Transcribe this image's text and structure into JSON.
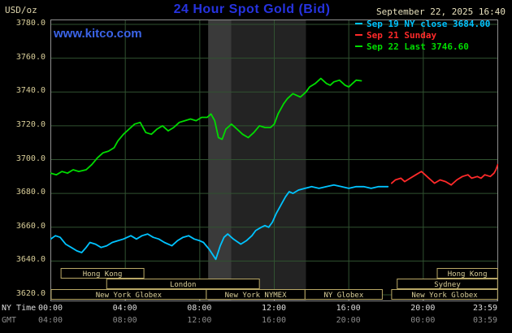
{
  "header": {
    "units": "USD/oz",
    "title": "24 Hour Spot Gold (Bid)",
    "datetime": "September 22, 2025 16:40",
    "watermark": "www.kitco.com",
    "legend": [
      {
        "label": "Sep 19 NY close 3684.00",
        "color": "#00c3ff"
      },
      {
        "label": "Sep 21 Sunday",
        "color": "#ff2a2a"
      },
      {
        "label": "Sep 22 Last 3746.60",
        "color": "#00dc00"
      }
    ]
  },
  "axes": {
    "ny_label": "NY Time",
    "gmt_label": "GMT",
    "ny_ticks": [
      "00:00",
      "04:00",
      "08:00",
      "12:00",
      "16:00",
      "20:00",
      "23:59"
    ],
    "gmt_ticks": [
      "04:00",
      "08:00",
      "12:00",
      "16:00",
      "20:00",
      "00:00",
      "03:59"
    ],
    "y_ticks": [
      "3780.0",
      "3760.0",
      "3740.0",
      "3720.0",
      "3700.0",
      "3680.0",
      "3660.0",
      "3640.0",
      "3620.0"
    ]
  },
  "colors": {
    "background": "#000000",
    "title_blue": "#2633e0",
    "kitco_blue": "#3b64e8",
    "axis_tan": "#d8cd98",
    "date_text": "#e8e1bd",
    "ny_tick_text": "#dcdcdc",
    "gmt_tick_text": "#8c8c8c",
    "grid": "#315231",
    "frame": "#8f8f8f",
    "session_border": "#b9a866",
    "session_text": "#d8cd98"
  },
  "chart_data": {
    "type": "line",
    "title": "24 Hour Spot Gold (Bid)",
    "xlabel": "NY Time",
    "ylabel": "USD/oz",
    "xlim": [
      0,
      24
    ],
    "ylim": [
      3620,
      3780
    ],
    "y_grid_step": 20,
    "x_grid_hours": [
      4,
      8,
      12,
      16,
      20
    ],
    "x_tick_hours": [
      0,
      4,
      8,
      12,
      16,
      20,
      23.98
    ],
    "grid_on": true,
    "legend_position": "top-right",
    "highlight_bands": [
      {
        "start": 8.45,
        "end": 9.7,
        "color": "#3a3a3a"
      },
      {
        "start": 9.7,
        "end": 13.7,
        "color": "#232323"
      }
    ],
    "series": [
      {
        "id": "sep19",
        "name": "Sep 19 NY close 3684.00",
        "color": "#00c3ff",
        "points": [
          [
            0,
            3653
          ],
          [
            0.25,
            3655
          ],
          [
            0.5,
            3654
          ],
          [
            0.8,
            3650
          ],
          [
            1.1,
            3648
          ],
          [
            1.4,
            3646
          ],
          [
            1.66,
            3645
          ],
          [
            1.9,
            3648
          ],
          [
            2.1,
            3651
          ],
          [
            2.4,
            3650
          ],
          [
            2.7,
            3648
          ],
          [
            3,
            3649
          ],
          [
            3.3,
            3651
          ],
          [
            3.6,
            3652
          ],
          [
            3.9,
            3653
          ],
          [
            4.3,
            3655
          ],
          [
            4.6,
            3653
          ],
          [
            4.9,
            3655
          ],
          [
            5.2,
            3656
          ],
          [
            5.5,
            3654
          ],
          [
            5.8,
            3653
          ],
          [
            6.1,
            3651
          ],
          [
            6.5,
            3649
          ],
          [
            6.8,
            3652
          ],
          [
            7.1,
            3654
          ],
          [
            7.4,
            3655
          ],
          [
            7.7,
            3653
          ],
          [
            8,
            3652
          ],
          [
            8.2,
            3651
          ],
          [
            8.5,
            3647
          ],
          [
            8.86,
            3641
          ],
          [
            9.1,
            3649
          ],
          [
            9.3,
            3654
          ],
          [
            9.5,
            3656
          ],
          [
            9.8,
            3653
          ],
          [
            10.2,
            3650
          ],
          [
            10.5,
            3652
          ],
          [
            10.8,
            3655
          ],
          [
            11,
            3658
          ],
          [
            11.3,
            3660
          ],
          [
            11.5,
            3661
          ],
          [
            11.7,
            3660
          ],
          [
            11.9,
            3663
          ],
          [
            12.1,
            3668
          ],
          [
            12.4,
            3674
          ],
          [
            12.6,
            3678
          ],
          [
            12.8,
            3681
          ],
          [
            13,
            3680
          ],
          [
            13.3,
            3682
          ],
          [
            13.65,
            3683
          ],
          [
            14,
            3684
          ],
          [
            14.4,
            3683
          ],
          [
            14.8,
            3684
          ],
          [
            15.2,
            3685
          ],
          [
            15.6,
            3684
          ],
          [
            16,
            3683
          ],
          [
            16.4,
            3684
          ],
          [
            16.8,
            3684
          ],
          [
            17.2,
            3683
          ],
          [
            17.6,
            3684
          ],
          [
            18.1,
            3684
          ]
        ]
      },
      {
        "id": "sep21",
        "name": "Sep 21 Sunday",
        "color": "#ff2a2a",
        "points": [
          [
            18.3,
            3686
          ],
          [
            18.5,
            3688
          ],
          [
            18.8,
            3689
          ],
          [
            19,
            3687
          ],
          [
            19.3,
            3689
          ],
          [
            19.6,
            3691
          ],
          [
            19.9,
            3693
          ],
          [
            20.1,
            3691
          ],
          [
            20.3,
            3689
          ],
          [
            20.6,
            3686
          ],
          [
            20.9,
            3688
          ],
          [
            21.2,
            3687
          ],
          [
            21.5,
            3685
          ],
          [
            21.8,
            3688
          ],
          [
            22.1,
            3690
          ],
          [
            22.4,
            3691
          ],
          [
            22.6,
            3689
          ],
          [
            22.9,
            3690
          ],
          [
            23.1,
            3689
          ],
          [
            23.3,
            3691
          ],
          [
            23.6,
            3690
          ],
          [
            23.8,
            3692
          ],
          [
            23.9,
            3694
          ],
          [
            24,
            3697
          ]
        ]
      },
      {
        "id": "sep22",
        "name": "Sep 22 Last 3746.60",
        "color": "#00dc00",
        "points": [
          [
            0,
            3692
          ],
          [
            0.3,
            3691
          ],
          [
            0.6,
            3693
          ],
          [
            0.9,
            3692
          ],
          [
            1.2,
            3694
          ],
          [
            1.5,
            3693
          ],
          [
            1.9,
            3694
          ],
          [
            2.2,
            3697
          ],
          [
            2.5,
            3701
          ],
          [
            2.8,
            3704
          ],
          [
            3.1,
            3705
          ],
          [
            3.4,
            3707
          ],
          [
            3.6,
            3711
          ],
          [
            3.9,
            3715
          ],
          [
            4.2,
            3718
          ],
          [
            4.5,
            3721
          ],
          [
            4.8,
            3722
          ],
          [
            5.1,
            3716
          ],
          [
            5.4,
            3715
          ],
          [
            5.7,
            3718
          ],
          [
            6,
            3720
          ],
          [
            6.3,
            3717
          ],
          [
            6.6,
            3719
          ],
          [
            6.9,
            3722
          ],
          [
            7.2,
            3723
          ],
          [
            7.5,
            3724
          ],
          [
            7.8,
            3723
          ],
          [
            8.1,
            3725
          ],
          [
            8.4,
            3725
          ],
          [
            8.6,
            3727
          ],
          [
            8.8,
            3723
          ],
          [
            9,
            3713
          ],
          [
            9.2,
            3712
          ],
          [
            9.4,
            3718
          ],
          [
            9.7,
            3721
          ],
          [
            10,
            3718
          ],
          [
            10.3,
            3715
          ],
          [
            10.6,
            3713
          ],
          [
            10.9,
            3716
          ],
          [
            11.2,
            3720
          ],
          [
            11.5,
            3719
          ],
          [
            11.8,
            3719
          ],
          [
            12,
            3721
          ],
          [
            12.2,
            3727
          ],
          [
            12.5,
            3733
          ],
          [
            12.7,
            3736
          ],
          [
            13,
            3739
          ],
          [
            13.2,
            3738
          ],
          [
            13.4,
            3737
          ],
          [
            13.7,
            3740
          ],
          [
            13.9,
            3743
          ],
          [
            14.2,
            3745
          ],
          [
            14.5,
            3748
          ],
          [
            14.8,
            3745
          ],
          [
            15,
            3744
          ],
          [
            15.2,
            3746
          ],
          [
            15.5,
            3747
          ],
          [
            15.8,
            3744
          ],
          [
            16,
            3743
          ],
          [
            16.2,
            3745
          ],
          [
            16.4,
            3747
          ],
          [
            16.67,
            3746.6
          ]
        ]
      }
    ],
    "sessions": [
      {
        "label": "Hong Kong",
        "row": 0,
        "start": 0.55,
        "end": 5.0
      },
      {
        "label": "Hong Kong",
        "row": 0,
        "start": 20.75,
        "end": 23.99
      },
      {
        "label": "London",
        "row": 1,
        "start": 3.0,
        "end": 11.2
      },
      {
        "label": "Sydney",
        "row": 1,
        "start": 18.6,
        "end": 23.99
      },
      {
        "label": "New York Globex",
        "row": 2,
        "start": 0.02,
        "end": 8.35
      },
      {
        "label": "New York NYMEX",
        "row": 2,
        "start": 8.35,
        "end": 13.65
      },
      {
        "label": "NY Globex",
        "row": 2,
        "start": 13.65,
        "end": 17.8
      },
      {
        "label": "New York Globex",
        "row": 2,
        "start": 18.3,
        "end": 23.99
      }
    ]
  }
}
